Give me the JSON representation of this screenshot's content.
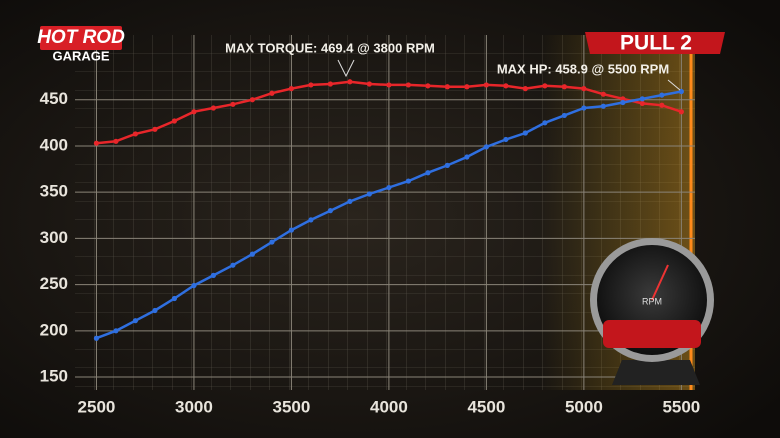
{
  "chart_data": {
    "type": "line",
    "logo": [
      "HOT ROD",
      "GARAGE"
    ],
    "badge": "PULL 2",
    "annotations": [
      "MAX TORQUE: 469.4 @ 3800 RPM",
      "MAX HP: 458.9 @ 5500 RPM"
    ],
    "x": [
      2500,
      2600,
      2700,
      2800,
      2900,
      3000,
      3100,
      3200,
      3300,
      3400,
      3500,
      3600,
      3700,
      3800,
      3900,
      4000,
      4100,
      4200,
      4300,
      4400,
      4500,
      4600,
      4700,
      4800,
      4900,
      5000,
      5100,
      5200,
      5300,
      5400,
      5500
    ],
    "series": [
      {
        "color": "#e8262a",
        "values": [
          403,
          405,
          413,
          418,
          427,
          437,
          441,
          445,
          450,
          457,
          462,
          466,
          467,
          469.4,
          467,
          466,
          466,
          465,
          464,
          464,
          466,
          465,
          462,
          465,
          464,
          462,
          456,
          451,
          446,
          444,
          437
        ]
      },
      {
        "color": "#2f6fe0",
        "values": [
          192,
          200,
          211,
          222,
          235,
          249,
          260,
          271,
          283,
          296,
          309,
          320,
          330,
          340,
          348,
          355,
          362,
          371,
          379,
          388,
          399,
          407,
          414,
          425,
          433,
          441,
          443,
          447,
          451,
          455,
          458.9
        ]
      }
    ],
    "xlim": [
      2390,
      5570
    ],
    "ylim": [
      136,
      520
    ],
    "xticks": [
      2500,
      3000,
      3500,
      4000,
      4500,
      5000,
      5500
    ],
    "yticks": [
      150,
      200,
      250,
      300,
      350,
      400,
      450
    ],
    "grid": true,
    "gauge_label": "RPM"
  }
}
